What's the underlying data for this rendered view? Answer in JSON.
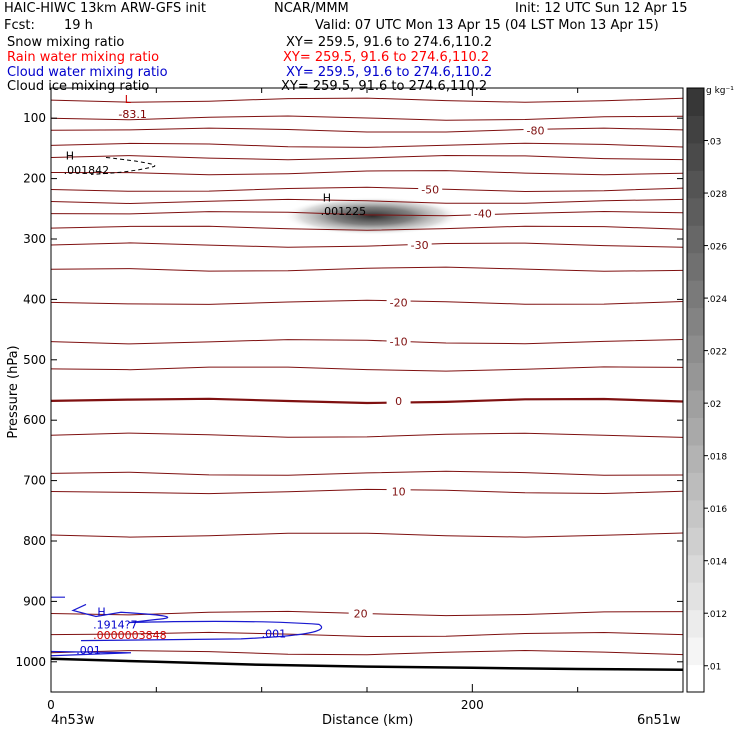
{
  "header": {
    "model": "HAIC-HIWC 13km ARW-GFS init",
    "org": "NCAR/MMM",
    "init": "Init: 12 UTC Sun 12 Apr 15",
    "fcst_label": "Fcst:",
    "fcst_value": "19 h",
    "valid": "Valid: 07 UTC Mon 13 Apr 15 (04 LST Mon 13 Apr 15)"
  },
  "legend_rows": [
    {
      "name": "Snow mixing ratio",
      "xy": "XY= 259.5, 91.6 to 274.6,110.2",
      "color": "#000000"
    },
    {
      "name": "Rain water mixing ratio",
      "xy": "XY= 259.5, 91.6 to 274.6,110.2",
      "color": "#ff0000"
    },
    {
      "name": "Cloud water mixing ratio",
      "xy": "XY= 259.5, 91.6 to 274.6,110.2",
      "color": "#0000cc"
    },
    {
      "name": "Cloud ice mixing ratio",
      "xy": "XY= 259.5, 91.6 to 274.6,110.2",
      "color": "#000000"
    }
  ],
  "colorbar": {
    "unit": "g kg⁻¹",
    "ticks": [
      ".03",
      ".028",
      ".026",
      ".024",
      ".022",
      ".02",
      ".018",
      ".016",
      ".014",
      ".012",
      ".01"
    ],
    "range": [
      0.009,
      0.032
    ]
  },
  "chart_data": {
    "type": "contour",
    "xlabel": "Distance (km)",
    "ylabel": "Pressure (hPa)",
    "xlim": [
      0,
      300
    ],
    "ylim": [
      1050,
      50
    ],
    "x_ticks": [
      "0",
      "200"
    ],
    "x_tick_values": [
      0,
      200
    ],
    "x_minor_ticks": [
      50,
      100,
      150,
      250,
      300
    ],
    "x_endpoints": {
      "left": "4n53w",
      "right": "6n51w"
    },
    "y_ticks": [
      "100",
      "200",
      "300",
      "400",
      "500",
      "600",
      "700",
      "800",
      "900",
      "1000"
    ],
    "y_tick_values": [
      100,
      200,
      300,
      400,
      500,
      600,
      700,
      800,
      900,
      1000
    ],
    "temperature_contours": [
      {
        "p": 70
      },
      {
        "p": 100
      },
      {
        "p": 120,
        "label": "-80",
        "x": 230
      },
      {
        "p": 145
      },
      {
        "p": 165
      },
      {
        "p": 190
      },
      {
        "p": 218,
        "label": "-50",
        "x": 180
      },
      {
        "p": 238
      },
      {
        "p": 258,
        "label": "-40",
        "x": 205
      },
      {
        "p": 282
      },
      {
        "p": 310,
        "label": "-30",
        "x": 175
      },
      {
        "p": 350
      },
      {
        "p": 405,
        "label": "-20",
        "x": 165
      },
      {
        "p": 470,
        "label": "-10",
        "x": 165
      },
      {
        "p": 515
      },
      {
        "p": 568,
        "label": "0",
        "x": 165,
        "bold": true
      },
      {
        "p": 625
      },
      {
        "p": 688
      },
      {
        "p": 718,
        "label": "10",
        "x": 165
      },
      {
        "p": 790
      },
      {
        "p": 920,
        "label": "20",
        "x": 147
      },
      {
        "p": 955
      },
      {
        "p": 985
      }
    ],
    "labels": [
      {
        "text": "L",
        "x": 35,
        "p": 75,
        "color": "#cc0000"
      },
      {
        "text": "-83.1",
        "x": 32,
        "p": 100,
        "color": "#7f0000"
      },
      {
        "text": "H",
        "x": 7,
        "p": 168,
        "color": "#000000"
      },
      {
        "text": ".001842",
        "x": 6,
        "p": 192,
        "color": "#000000"
      },
      {
        "text": "H",
        "x": 129,
        "p": 238,
        "color": "#000000"
      },
      {
        "text": ".001225",
        "x": 128,
        "p": 260,
        "color": "#000000"
      },
      {
        "text": "H",
        "x": 22,
        "p": 923,
        "color": "#0000cc"
      },
      {
        "text": ".1914?7",
        "x": 20,
        "p": 945,
        "color": "#0000cc"
      },
      {
        "text": ".0000003848",
        "x": 20,
        "p": 962,
        "color": "#cc0000"
      },
      {
        "text": ".001",
        "x": 100,
        "p": 960,
        "color": "#0000cc"
      },
      {
        "text": ".001",
        "x": 12,
        "p": 987,
        "color": "#0000cc"
      }
    ],
    "snow_max": {
      "label": ".001225",
      "x_range": [
        110,
        195
      ],
      "p_center": 262,
      "max_value": 0.032
    },
    "terrain": [
      {
        "x": 0,
        "p": 995
      },
      {
        "x": 50,
        "p": 1000
      },
      {
        "x": 100,
        "p": 1005
      },
      {
        "x": 150,
        "p": 1008
      },
      {
        "x": 200,
        "p": 1010
      },
      {
        "x": 250,
        "p": 1012
      },
      {
        "x": 300,
        "p": 1013
      }
    ]
  }
}
